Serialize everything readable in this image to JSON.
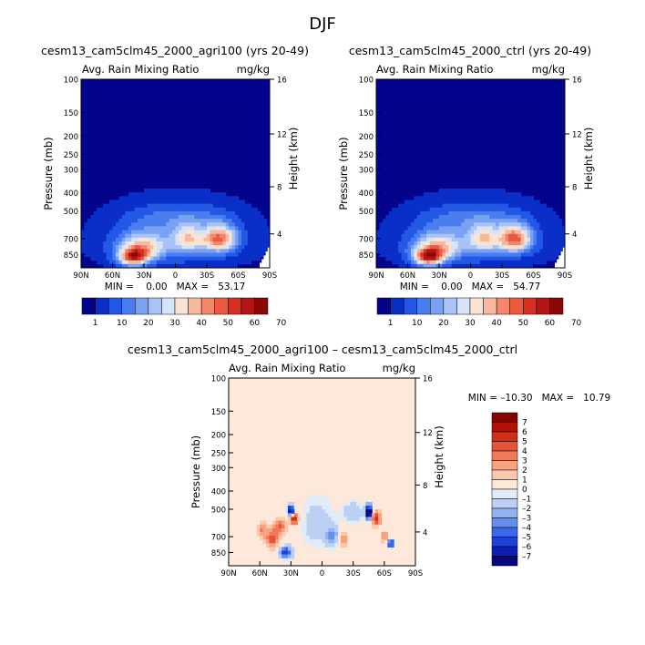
{
  "season": "DJF",
  "panels": [
    {
      "title": "cesm13_cam5clm45_2000_agri100 (yrs 20-49)",
      "left_label": "Avg. Rain Mixing Ratio",
      "right_label": "mg/kg",
      "stats": "MIN =    0.00   MAX =   53.17"
    },
    {
      "title": "cesm13_cam5clm45_2000_ctrl (yrs 20-49)",
      "left_label": "Avg. Rain Mixing Ratio",
      "right_label": "mg/kg",
      "stats": "MIN =    0.00   MAX =   54.77"
    },
    {
      "title": "cesm13_cam5clm45_2000_agri100 – cesm13_cam5clm45_2000_ctrl",
      "left_label": "Avg. Rain Mixing Ratio",
      "right_label": "mg/kg",
      "stats": "MIN = –10.30   MAX =   10.79"
    }
  ],
  "axes": {
    "ylabel": "Pressure (mb)",
    "y2label": "Height (km)",
    "xticks": [
      "90N",
      "60N",
      "30N",
      "0",
      "30S",
      "60S",
      "90S"
    ],
    "yticks": [
      "100",
      "150",
      "200",
      "250",
      "300",
      "400",
      "500",
      "700",
      "850"
    ],
    "ytick_values": [
      100,
      150,
      200,
      250,
      300,
      400,
      500,
      700,
      850
    ],
    "y2ticks": [
      "16",
      "12",
      "8",
      "4"
    ],
    "y2tick_values": [
      16,
      12,
      8,
      4
    ]
  },
  "colors": {
    "abs": [
      "#03038c",
      "#0a2fc8",
      "#2358e6",
      "#4a7ef0",
      "#7aa2f4",
      "#a9c3f6",
      "#d6e3f8",
      "#fbe3d2",
      "#f7b8a0",
      "#f2876c",
      "#ea5a41",
      "#d63122",
      "#b51512",
      "#8c0707"
    ],
    "diff": [
      "#06067e",
      "#0c1fb5",
      "#1d42d7",
      "#3a68e8",
      "#6390ef",
      "#92b3f2",
      "#bcd0f4",
      "#e2ecf8",
      "#fde8da",
      "#fbc9ac",
      "#f6a382",
      "#ef7a59",
      "#e65336",
      "#d02e18",
      "#b01208",
      "#850503"
    ]
  },
  "chart_data": [
    {
      "type": "heatmap",
      "title": "cesm13_cam5clm45_2000_agri100 (yrs 20-49)",
      "variable": "Avg. Rain Mixing Ratio",
      "units": "mg/kg",
      "xlabel": "",
      "ylabel": "Pressure (mb)",
      "y2label": "Height (km)",
      "xlim": [
        90,
        -90
      ],
      "ylim": [
        1000,
        100
      ],
      "min": 0.0,
      "max": 53.17,
      "colorbar_levels": [
        1,
        10,
        20,
        30,
        40,
        50,
        60,
        70
      ],
      "blobs": [
        {
          "lat": 0,
          "p": 730,
          "lat_w": 58,
          "p_w": 210,
          "value": 12
        },
        {
          "lat": 32,
          "p": 770,
          "lat_w": 22,
          "p_w": 120,
          "value": 28
        },
        {
          "lat": 40,
          "p": 880,
          "lat_w": 14,
          "p_w": 90,
          "value": 46
        },
        {
          "lat": -12,
          "p": 700,
          "lat_w": 14,
          "p_w": 110,
          "value": 24
        },
        {
          "lat": -42,
          "p": 700,
          "lat_w": 16,
          "p_w": 110,
          "value": 40
        },
        {
          "lat": 15,
          "p": 540,
          "lat_w": 40,
          "p_w": 90,
          "value": 5
        },
        {
          "lat": -20,
          "p": 540,
          "lat_w": 40,
          "p_w": 90,
          "value": 5
        }
      ]
    },
    {
      "type": "heatmap",
      "title": "cesm13_cam5clm45_2000_ctrl (yrs 20-49)",
      "variable": "Avg. Rain Mixing Ratio",
      "units": "mg/kg",
      "xlabel": "",
      "ylabel": "Pressure (mb)",
      "y2label": "Height (km)",
      "xlim": [
        90,
        -90
      ],
      "ylim": [
        1000,
        100
      ],
      "min": 0.0,
      "max": 54.77,
      "colorbar_levels": [
        1,
        10,
        20,
        30,
        40,
        50,
        60,
        70
      ],
      "blobs": [
        {
          "lat": 0,
          "p": 730,
          "lat_w": 58,
          "p_w": 210,
          "value": 12
        },
        {
          "lat": 32,
          "p": 770,
          "lat_w": 22,
          "p_w": 120,
          "value": 28
        },
        {
          "lat": 40,
          "p": 880,
          "lat_w": 14,
          "p_w": 90,
          "value": 48
        },
        {
          "lat": -12,
          "p": 700,
          "lat_w": 14,
          "p_w": 110,
          "value": 24
        },
        {
          "lat": -42,
          "p": 700,
          "lat_w": 16,
          "p_w": 110,
          "value": 42
        },
        {
          "lat": 15,
          "p": 540,
          "lat_w": 40,
          "p_w": 90,
          "value": 5
        },
        {
          "lat": -20,
          "p": 540,
          "lat_w": 40,
          "p_w": 90,
          "value": 5
        }
      ]
    },
    {
      "type": "heatmap",
      "title": "cesm13_cam5clm45_2000_agri100 – cesm13_cam5clm45_2000_ctrl",
      "variable": "Avg. Rain Mixing Ratio",
      "units": "mg/kg",
      "xlabel": "",
      "ylabel": "Pressure (mb)",
      "y2label": "Height (km)",
      "xlim": [
        90,
        -90
      ],
      "ylim": [
        1000,
        100
      ],
      "min": -10.3,
      "max": 10.79,
      "colorbar_levels": [
        7,
        6,
        5,
        4,
        3,
        2,
        1,
        0,
        -1,
        -2,
        -3,
        -4,
        -5,
        -6,
        -7
      ],
      "blobs": [
        {
          "lat": 30,
          "p": 510,
          "lat_w": 3,
          "p_w": 35,
          "value": -9
        },
        {
          "lat": 27,
          "p": 560,
          "lat_w": 4,
          "p_w": 40,
          "value": 7
        },
        {
          "lat": 40,
          "p": 620,
          "lat_w": 6,
          "p_w": 60,
          "value": 4
        },
        {
          "lat": 48,
          "p": 720,
          "lat_w": 6,
          "p_w": 80,
          "value": 5
        },
        {
          "lat": 58,
          "p": 650,
          "lat_w": 5,
          "p_w": 70,
          "value": 3
        },
        {
          "lat": 35,
          "p": 850,
          "lat_w": 6,
          "p_w": 60,
          "value": -6
        },
        {
          "lat": 5,
          "p": 600,
          "lat_w": 18,
          "p_w": 200,
          "value": -1.5
        },
        {
          "lat": -10,
          "p": 700,
          "lat_w": 6,
          "p_w": 80,
          "value": -3
        },
        {
          "lat": -20,
          "p": 720,
          "lat_w": 5,
          "p_w": 70,
          "value": 3
        },
        {
          "lat": -30,
          "p": 520,
          "lat_w": 10,
          "p_w": 70,
          "value": -2
        },
        {
          "lat": -45,
          "p": 520,
          "lat_w": 3,
          "p_w": 45,
          "value": -10
        },
        {
          "lat": -52,
          "p": 560,
          "lat_w": 4,
          "p_w": 50,
          "value": 6
        },
        {
          "lat": -60,
          "p": 700,
          "lat_w": 4,
          "p_w": 50,
          "value": 3
        },
        {
          "lat": -66,
          "p": 760,
          "lat_w": 3,
          "p_w": 35,
          "value": -7
        }
      ]
    }
  ]
}
